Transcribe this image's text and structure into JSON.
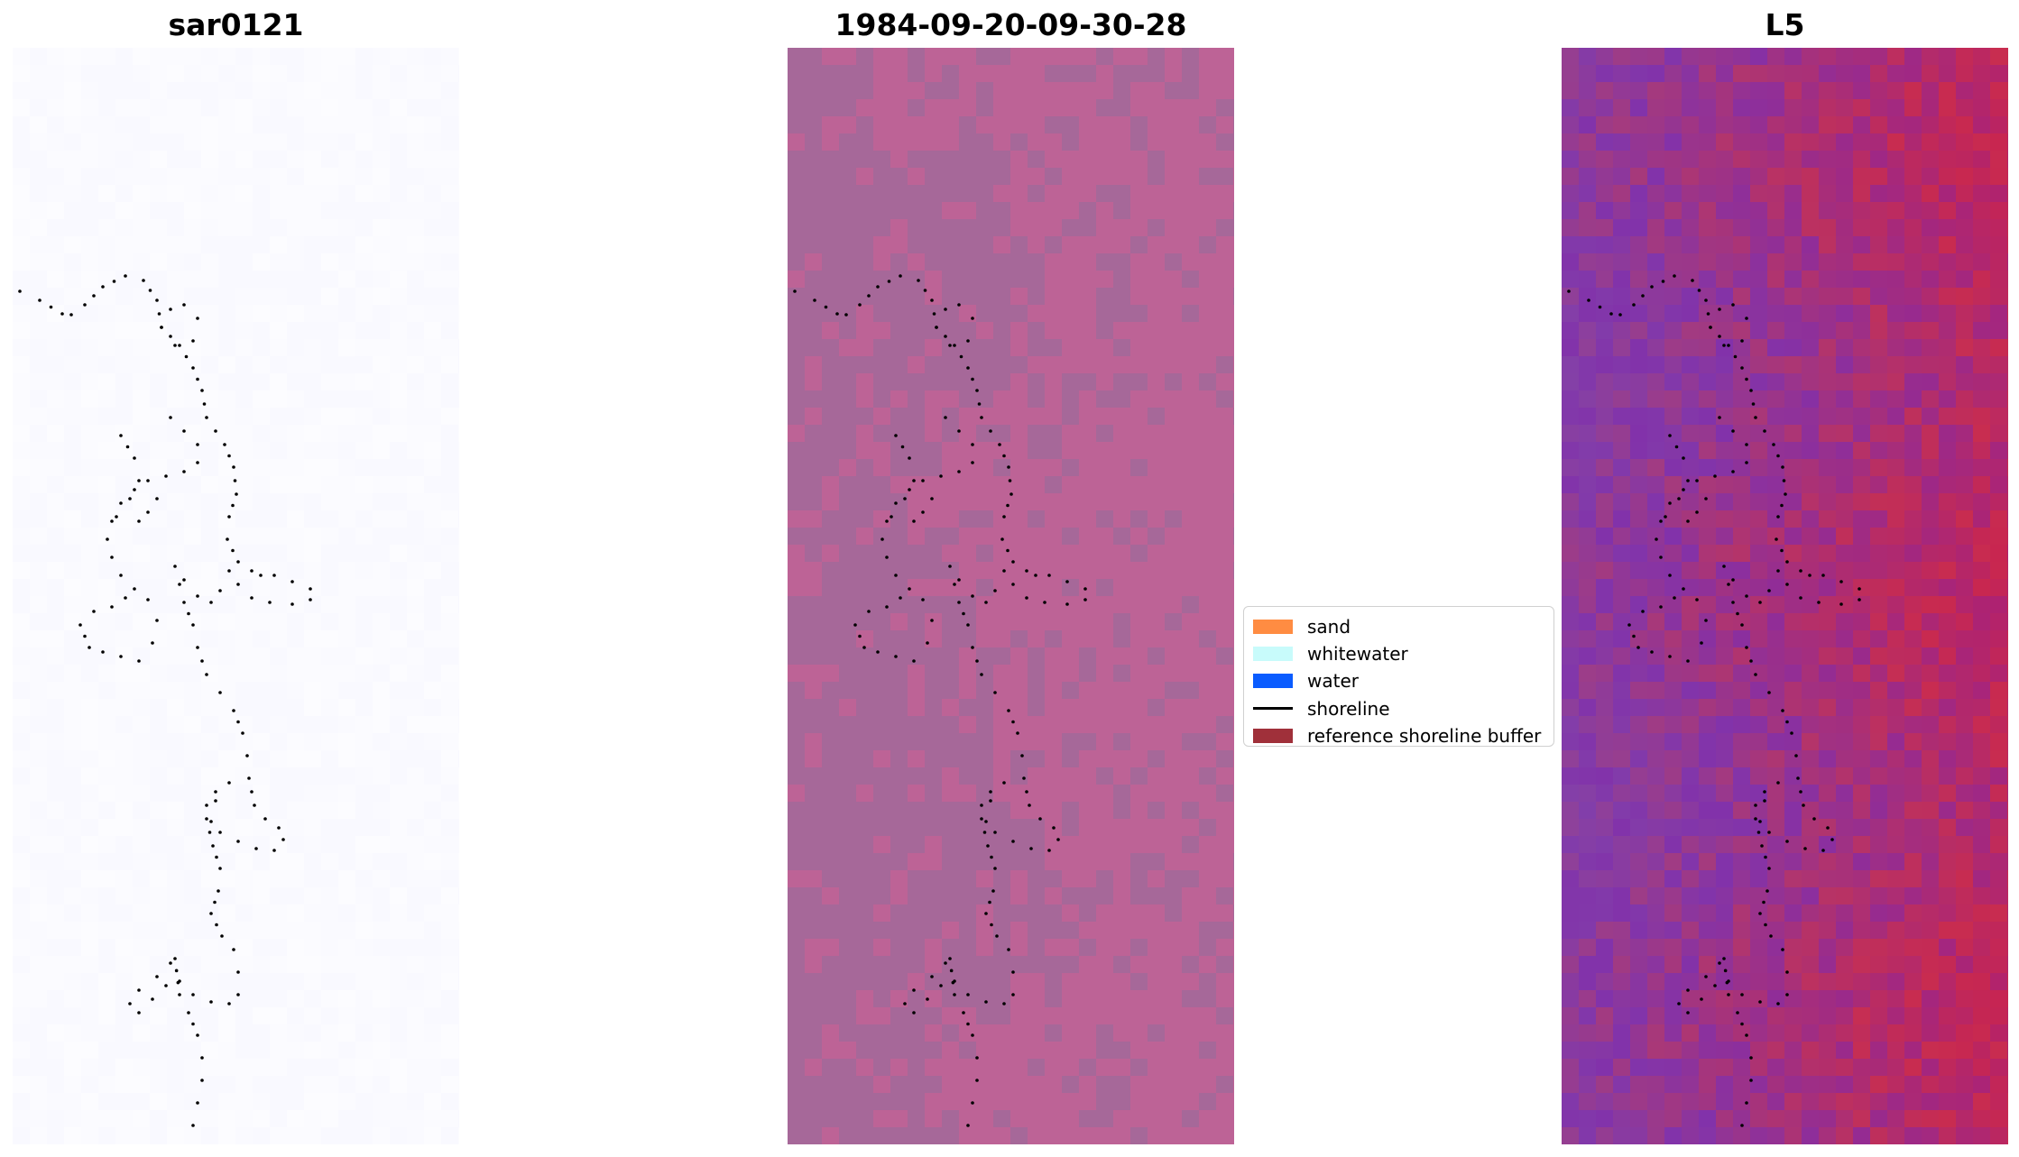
{
  "titles": {
    "left": "sar0121",
    "center": "1984-09-20-09-30-28",
    "right": "L5"
  },
  "legend": {
    "items": [
      {
        "label": "sand",
        "kind": "patch",
        "color": "#ff8c42"
      },
      {
        "label": "whitewater",
        "kind": "patch",
        "color": "#c8fbfb"
      },
      {
        "label": "water",
        "kind": "patch",
        "color": "#0a5cff"
      },
      {
        "label": "shoreline",
        "kind": "line",
        "color": "#000000"
      },
      {
        "label": "reference shoreline buffer",
        "kind": "patch",
        "color": "#a0303a"
      }
    ]
  },
  "colors": {
    "left_background": "#fafaff",
    "center_purple": "#a66899",
    "center_pink": "#bd6396",
    "right_red": "#c41e50",
    "right_purple": "#8c3aa8",
    "shoreline_dots": "#000000"
  }
}
